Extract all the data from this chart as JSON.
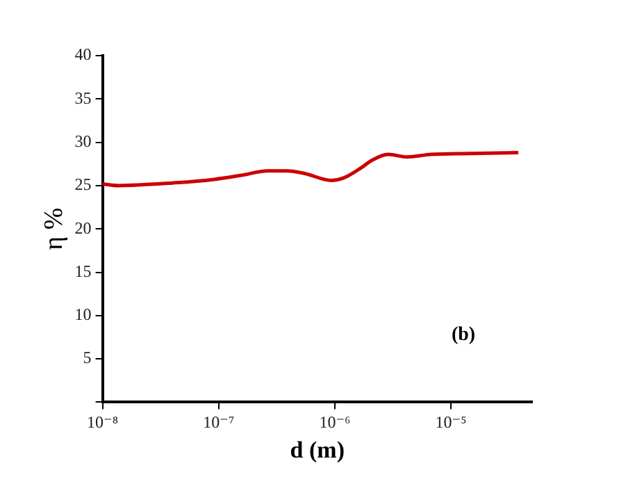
{
  "chart_data": {
    "type": "line",
    "xlabel": "d (m)",
    "ylabel": "η %",
    "annotations": [
      "(b)"
    ],
    "log": "x",
    "xlim": [
      1e-08,
      5e-05
    ],
    "xticks": [
      {
        "value": 1e-08,
        "label": "10⁻⁸"
      },
      {
        "value": 1e-07,
        "label": "10⁻⁷"
      },
      {
        "value": 1e-06,
        "label": "10⁻⁶"
      },
      {
        "value": 1e-05,
        "label": "10⁻⁵"
      }
    ],
    "ylim": [
      0,
      40
    ],
    "yticks": [
      {
        "value": 0,
        "label": null
      },
      5,
      10,
      15,
      20,
      25,
      30,
      35,
      40
    ],
    "grid": false,
    "marker": "none",
    "line_style": "solid",
    "series": [
      {
        "color": "#cc0000",
        "x": [
          1e-08,
          1.38e-08,
          3.98e-08,
          8.9e-08,
          1.58e-07,
          2.63e-07,
          3.89e-07,
          5.5e-07,
          9.3e-07,
          1.2e-06,
          1.62e-06,
          2.14e-06,
          2.88e-06,
          4.17e-06,
          6.76e-06,
          1.48e-05,
          3.8e-05
        ],
        "values": [
          25.2,
          25.0,
          25.3,
          25.7,
          26.2,
          26.7,
          26.7,
          26.4,
          25.6,
          25.9,
          26.9,
          28.0,
          28.6,
          28.3,
          28.6,
          28.7,
          28.8
        ]
      }
    ]
  }
}
